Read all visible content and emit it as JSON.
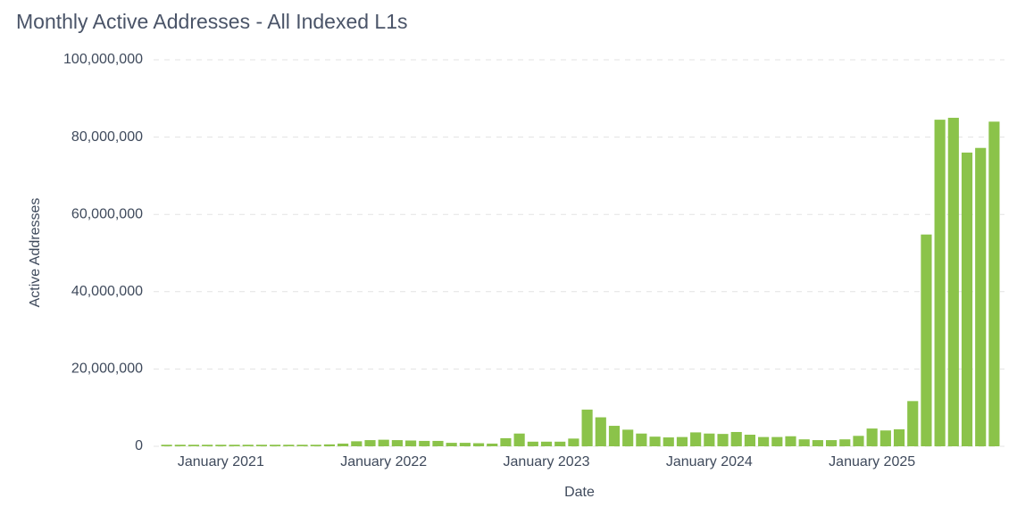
{
  "chart_data": {
    "type": "bar",
    "title": "Monthly Active Addresses - All Indexed L1s",
    "x_label": "Date",
    "y_label": "Active Addresses",
    "color": "#8bc34a",
    "grid": true,
    "categories": [
      null,
      null,
      null,
      null,
      "January 2021",
      null,
      null,
      null,
      null,
      null,
      null,
      null,
      null,
      null,
      null,
      null,
      "January 2022",
      null,
      null,
      null,
      null,
      null,
      null,
      null,
      null,
      null,
      null,
      null,
      "January 2023",
      null,
      null,
      null,
      null,
      null,
      null,
      null,
      null,
      null,
      null,
      null,
      "January 2024",
      null,
      null,
      null,
      null,
      null,
      null,
      null,
      null,
      null,
      null,
      null,
      "January 2025",
      null,
      null,
      null,
      null,
      null,
      null,
      null,
      null,
      null
    ],
    "values": [
      400000,
      400000,
      400000,
      400000,
      400000,
      400000,
      400000,
      400000,
      400000,
      400000,
      400000,
      400000,
      500000,
      700000,
      1300000,
      1600000,
      1700000,
      1600000,
      1500000,
      1400000,
      1400000,
      900000,
      900000,
      800000,
      700000,
      2100000,
      3300000,
      1200000,
      1200000,
      1200000,
      2000000,
      9500000,
      7500000,
      5300000,
      4300000,
      3300000,
      2500000,
      2300000,
      2400000,
      3600000,
      3300000,
      3200000,
      3700000,
      3000000,
      2400000,
      2400000,
      2600000,
      1800000,
      1600000,
      1600000,
      1800000,
      2700000,
      4600000,
      4100000,
      4400000,
      11700000,
      54800000,
      84500000,
      85000000,
      76000000,
      77200000,
      84000000
    ],
    "ylim": [
      0,
      100000000
    ],
    "yticks": [
      0,
      {
        "value": 20000000,
        "label": "20,000,000"
      },
      {
        "value": 40000000,
        "label": "40,000,000"
      },
      {
        "value": 60000000,
        "label": "60,000,000"
      },
      {
        "value": 80000000,
        "label": "80,000,000"
      },
      {
        "value": 100000000,
        "label": "100,000,000"
      }
    ]
  }
}
